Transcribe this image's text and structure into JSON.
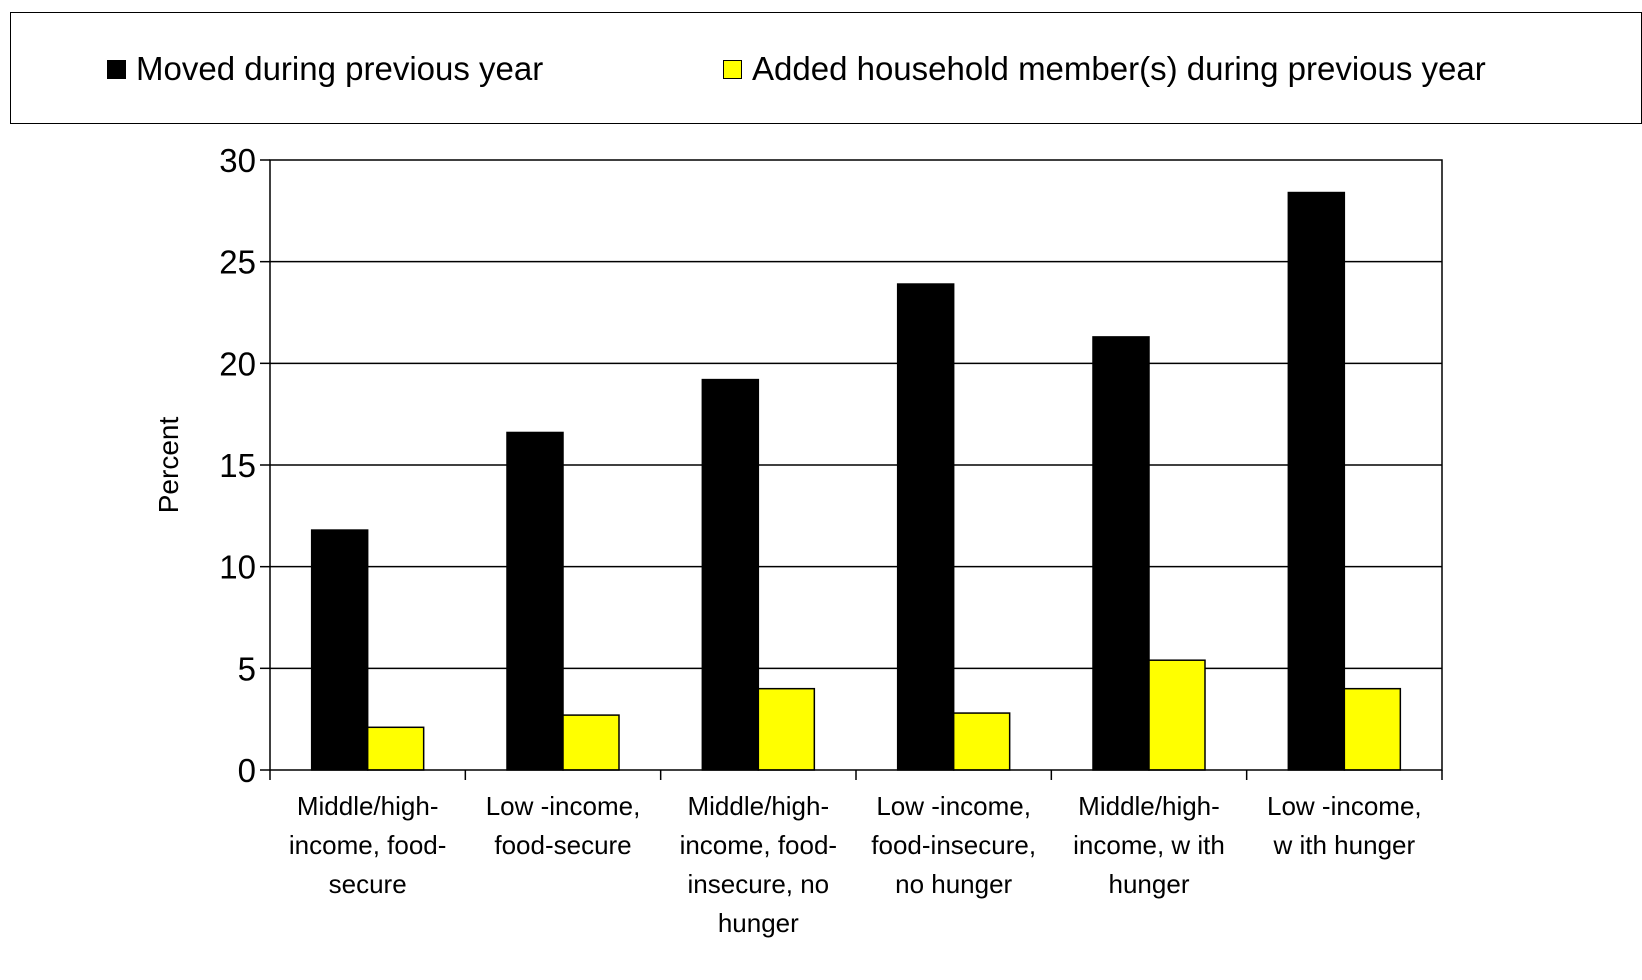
{
  "chart_data": {
    "type": "bar",
    "title": "",
    "xlabel": "",
    "ylabel": "Percent",
    "ylim": [
      0,
      30
    ],
    "yticks": [
      0,
      5,
      10,
      15,
      20,
      25,
      30
    ],
    "grid": true,
    "legend_position": "top",
    "categories": [
      [
        "Middle/high-",
        "income, food-",
        "secure"
      ],
      [
        "Low -income,",
        "food-secure"
      ],
      [
        "Middle/high-",
        "income, food-",
        "insecure, no",
        "hunger"
      ],
      [
        "Low -income,",
        "food-insecure,",
        "no hunger"
      ],
      [
        "Middle/high-",
        "income, w ith",
        "hunger"
      ],
      [
        "Low -income,",
        "w ith hunger"
      ]
    ],
    "series": [
      {
        "name": "Moved during previous year",
        "color": "#000000",
        "values": [
          11.8,
          16.6,
          19.2,
          23.9,
          21.3,
          28.4
        ]
      },
      {
        "name": "Added household member(s) during previous year",
        "color": "#ffff00",
        "values": [
          2.1,
          2.7,
          4.0,
          2.8,
          5.4,
          4.0
        ]
      }
    ]
  }
}
